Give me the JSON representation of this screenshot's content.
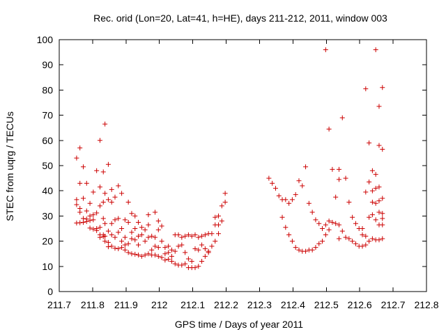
{
  "chart_data": {
    "type": "scatter",
    "title": "Rec. orid (Lon=20, Lat=41, h=HE), days 211-212, 2011, window 003",
    "xlabel": "GPS time / Days of year 2011",
    "ylabel": "STEC from uqrg / TECUs",
    "xlim": [
      211.7,
      212.8
    ],
    "ylim": [
      0,
      100
    ],
    "x_ticks": [
      "211.7",
      "211.8",
      "211.9",
      "212",
      "212.1",
      "212.2",
      "212.3",
      "212.4",
      "212.5",
      "212.6",
      "212.7",
      "212.8"
    ],
    "y_ticks": [
      "0",
      "10",
      "20",
      "30",
      "40",
      "50",
      "60",
      "70",
      "80",
      "90",
      "100"
    ],
    "marker": "+",
    "marker_color": "#cc0000",
    "grid": false,
    "legend": "none",
    "points": [
      [
        211.752,
        53.0
      ],
      [
        211.752,
        36.5
      ],
      [
        211.752,
        34.5
      ],
      [
        211.752,
        27.2
      ],
      [
        211.762,
        57.0
      ],
      [
        211.762,
        43.0
      ],
      [
        211.762,
        33.0
      ],
      [
        211.762,
        31.5
      ],
      [
        211.762,
        27.3
      ],
      [
        211.772,
        49.5
      ],
      [
        211.772,
        37.0
      ],
      [
        211.772,
        29.0
      ],
      [
        211.772,
        27.5
      ],
      [
        211.782,
        43.0
      ],
      [
        211.782,
        32.0
      ],
      [
        211.782,
        28.8
      ],
      [
        211.782,
        27.8
      ],
      [
        211.792,
        35.0
      ],
      [
        211.792,
        30.0
      ],
      [
        211.792,
        28.2
      ],
      [
        211.792,
        25.2
      ],
      [
        211.802,
        39.5
      ],
      [
        211.802,
        30.5
      ],
      [
        211.802,
        28.5
      ],
      [
        211.802,
        24.8
      ],
      [
        211.812,
        48.0
      ],
      [
        211.812,
        31.2
      ],
      [
        211.812,
        25.0
      ],
      [
        211.812,
        24.2
      ],
      [
        211.822,
        60.0
      ],
      [
        211.822,
        41.5
      ],
      [
        211.822,
        34.0
      ],
      [
        211.822,
        25.5
      ],
      [
        211.822,
        22.5
      ],
      [
        211.822,
        21.5
      ],
      [
        211.832,
        47.5
      ],
      [
        211.832,
        35.5
      ],
      [
        211.832,
        29.0
      ],
      [
        211.832,
        22.5
      ],
      [
        211.832,
        21.8
      ],
      [
        211.837,
        66.5
      ],
      [
        211.837,
        39.0
      ],
      [
        211.837,
        27.0
      ],
      [
        211.837,
        22.0
      ],
      [
        211.837,
        20.0
      ],
      [
        211.847,
        50.5
      ],
      [
        211.847,
        36.5
      ],
      [
        211.847,
        24.0
      ],
      [
        211.847,
        19.5
      ],
      [
        211.847,
        17.8
      ],
      [
        211.857,
        40.5
      ],
      [
        211.857,
        35.5
      ],
      [
        211.857,
        27.0
      ],
      [
        211.857,
        22.5
      ],
      [
        211.857,
        18.0
      ],
      [
        211.867,
        37.5
      ],
      [
        211.867,
        28.5
      ],
      [
        211.867,
        21.5
      ],
      [
        211.867,
        17.2
      ],
      [
        211.877,
        42.0
      ],
      [
        211.877,
        29.0
      ],
      [
        211.877,
        23.5
      ],
      [
        211.877,
        17.0
      ],
      [
        211.887,
        39.0
      ],
      [
        211.887,
        25.0
      ],
      [
        211.887,
        20.0
      ],
      [
        211.887,
        17.5
      ],
      [
        211.897,
        28.5
      ],
      [
        211.897,
        21.5
      ],
      [
        211.897,
        18.5
      ],
      [
        211.897,
        16.5
      ],
      [
        211.907,
        35.5
      ],
      [
        211.907,
        27.5
      ],
      [
        211.907,
        19.0
      ],
      [
        211.907,
        15.5
      ],
      [
        211.917,
        31.0
      ],
      [
        211.917,
        23.5
      ],
      [
        211.917,
        21.0
      ],
      [
        211.917,
        15.0
      ],
      [
        211.927,
        30.0
      ],
      [
        211.927,
        25.0
      ],
      [
        211.927,
        20.5
      ],
      [
        211.927,
        14.8
      ],
      [
        211.937,
        27.5
      ],
      [
        211.937,
        22.0
      ],
      [
        211.937,
        18.5
      ],
      [
        211.937,
        14.5
      ],
      [
        211.947,
        25.5
      ],
      [
        211.947,
        22.5
      ],
      [
        211.947,
        14.0
      ],
      [
        211.957,
        24.5
      ],
      [
        211.957,
        20.0
      ],
      [
        211.957,
        14.5
      ],
      [
        211.967,
        30.5
      ],
      [
        211.967,
        26.5
      ],
      [
        211.967,
        21.5
      ],
      [
        211.967,
        15.0
      ],
      [
        211.977,
        22.0
      ],
      [
        211.977,
        16.5
      ],
      [
        211.977,
        14.5
      ],
      [
        211.987,
        31.5
      ],
      [
        211.987,
        21.5
      ],
      [
        211.987,
        18.0
      ],
      [
        211.987,
        14.5
      ],
      [
        211.997,
        28.0
      ],
      [
        211.997,
        24.5
      ],
      [
        211.997,
        17.5
      ],
      [
        211.997,
        14.0
      ],
      [
        212.007,
        26.0
      ],
      [
        212.007,
        20.0
      ],
      [
        212.007,
        13.5
      ],
      [
        212.017,
        17.5
      ],
      [
        212.017,
        15.0
      ],
      [
        212.017,
        12.5
      ],
      [
        212.027,
        18.0
      ],
      [
        212.027,
        15.5
      ],
      [
        212.027,
        12.8
      ],
      [
        212.037,
        16.5
      ],
      [
        212.037,
        14.0
      ],
      [
        212.037,
        12.0
      ],
      [
        212.047,
        22.5
      ],
      [
        212.047,
        16.0
      ],
      [
        212.047,
        11.0
      ],
      [
        212.057,
        22.5
      ],
      [
        212.057,
        18.0
      ],
      [
        212.057,
        10.5
      ],
      [
        212.067,
        21.5
      ],
      [
        212.067,
        18.5
      ],
      [
        212.067,
        10.5
      ],
      [
        212.077,
        22.0
      ],
      [
        212.077,
        15.5
      ],
      [
        212.077,
        11.0
      ],
      [
        212.087,
        22.5
      ],
      [
        212.087,
        13.0
      ],
      [
        212.087,
        9.5
      ],
      [
        212.097,
        22.0
      ],
      [
        212.097,
        12.0
      ],
      [
        212.097,
        9.5
      ],
      [
        212.107,
        22.5
      ],
      [
        212.107,
        17.0
      ],
      [
        212.107,
        9.5
      ],
      [
        212.117,
        21.5
      ],
      [
        212.117,
        16.5
      ],
      [
        212.117,
        10.0
      ],
      [
        212.127,
        22.0
      ],
      [
        212.127,
        18.5
      ],
      [
        212.127,
        12.0
      ],
      [
        212.137,
        22.5
      ],
      [
        212.137,
        17.0
      ],
      [
        212.137,
        14.0
      ],
      [
        212.147,
        23.0
      ],
      [
        212.147,
        16.0
      ],
      [
        212.147,
        15.5
      ],
      [
        212.157,
        23.0
      ],
      [
        212.157,
        18.0
      ],
      [
        212.167,
        29.5
      ],
      [
        212.167,
        26.5
      ],
      [
        212.167,
        20.0
      ],
      [
        212.177,
        30.0
      ],
      [
        212.177,
        26.5
      ],
      [
        212.177,
        23.0
      ],
      [
        212.187,
        34.0
      ],
      [
        212.187,
        28.0
      ],
      [
        212.197,
        39.0
      ],
      [
        212.197,
        35.5
      ],
      [
        212.328,
        45.0
      ],
      [
        212.338,
        43.0
      ],
      [
        212.348,
        41.0
      ],
      [
        212.358,
        38.0
      ],
      [
        212.368,
        36.5
      ],
      [
        212.368,
        29.5
      ],
      [
        212.378,
        36.5
      ],
      [
        212.378,
        25.5
      ],
      [
        212.388,
        35.0
      ],
      [
        212.388,
        22.5
      ],
      [
        212.398,
        36.5
      ],
      [
        212.398,
        20.0
      ],
      [
        212.408,
        38.5
      ],
      [
        212.408,
        17.5
      ],
      [
        212.418,
        44.0
      ],
      [
        212.418,
        16.5
      ],
      [
        212.428,
        42.0
      ],
      [
        212.428,
        16.0
      ],
      [
        212.438,
        49.5
      ],
      [
        212.438,
        16.0
      ],
      [
        212.448,
        35.0
      ],
      [
        212.448,
        16.5
      ],
      [
        212.458,
        31.5
      ],
      [
        212.458,
        16.5
      ],
      [
        212.468,
        28.5
      ],
      [
        212.468,
        17.5
      ],
      [
        212.478,
        27.0
      ],
      [
        212.478,
        19.0
      ],
      [
        212.488,
        25.0
      ],
      [
        212.488,
        20.0
      ],
      [
        212.498,
        96.0
      ],
      [
        212.498,
        26.5
      ],
      [
        212.498,
        22.5
      ],
      [
        212.508,
        64.5
      ],
      [
        212.508,
        28.0
      ],
      [
        212.508,
        24.5
      ],
      [
        212.518,
        48.5
      ],
      [
        212.518,
        27.5
      ],
      [
        212.528,
        37.5
      ],
      [
        212.528,
        27.0
      ],
      [
        212.538,
        48.5
      ],
      [
        212.538,
        44.5
      ],
      [
        212.538,
        26.5
      ],
      [
        212.538,
        21.0
      ],
      [
        212.548,
        69.0
      ],
      [
        212.548,
        24.0
      ],
      [
        212.558,
        45.0
      ],
      [
        212.558,
        21.5
      ],
      [
        212.568,
        35.5
      ],
      [
        212.568,
        21.0
      ],
      [
        212.578,
        29.5
      ],
      [
        212.578,
        20.0
      ],
      [
        212.588,
        27.0
      ],
      [
        212.588,
        19.0
      ],
      [
        212.598,
        25.0
      ],
      [
        212.598,
        18.0
      ],
      [
        212.608,
        25.0
      ],
      [
        212.608,
        22.5
      ],
      [
        212.608,
        18.0
      ],
      [
        212.618,
        80.5
      ],
      [
        212.618,
        39.5
      ],
      [
        212.618,
        22.0
      ],
      [
        212.618,
        18.5
      ],
      [
        212.628,
        59.0
      ],
      [
        212.628,
        43.5
      ],
      [
        212.628,
        29.5
      ],
      [
        212.628,
        20.0
      ],
      [
        212.638,
        48.0
      ],
      [
        212.638,
        40.0
      ],
      [
        212.638,
        35.5
      ],
      [
        212.638,
        30.5
      ],
      [
        212.638,
        21.0
      ],
      [
        212.648,
        96.0
      ],
      [
        212.648,
        46.5
      ],
      [
        212.648,
        41.0
      ],
      [
        212.648,
        35.0
      ],
      [
        212.648,
        28.5
      ],
      [
        212.648,
        20.5
      ],
      [
        212.658,
        73.5
      ],
      [
        212.658,
        58.0
      ],
      [
        212.658,
        41.5
      ],
      [
        212.658,
        36.0
      ],
      [
        212.658,
        31.5
      ],
      [
        212.658,
        26.5
      ],
      [
        212.658,
        20.5
      ],
      [
        212.668,
        81.0
      ],
      [
        212.668,
        56.5
      ],
      [
        212.668,
        37.0
      ],
      [
        212.668,
        31.0
      ],
      [
        212.668,
        29.0
      ],
      [
        212.668,
        26.5
      ],
      [
        212.668,
        21.0
      ]
    ]
  }
}
